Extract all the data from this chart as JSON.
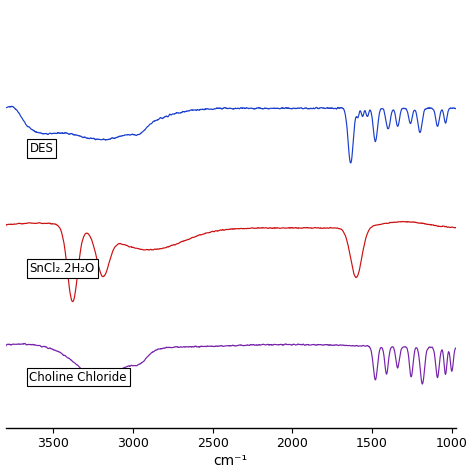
{
  "xlabel": "cm⁻¹",
  "xmin": 3800,
  "xmax": 975,
  "xticks": [
    3500,
    3000,
    2500,
    2000,
    1500,
    1000
  ],
  "colors": {
    "des": "#1a3fcc",
    "sncl2": "#cc1111",
    "choline": "#7722aa"
  },
  "labels": {
    "des": "DES",
    "sncl2": "SnCl₂.2H₂O",
    "choline": "Choline Chloride"
  },
  "background": "#ffffff",
  "offsets": [
    2.1,
    1.05,
    0.0
  ],
  "scale": 0.55
}
